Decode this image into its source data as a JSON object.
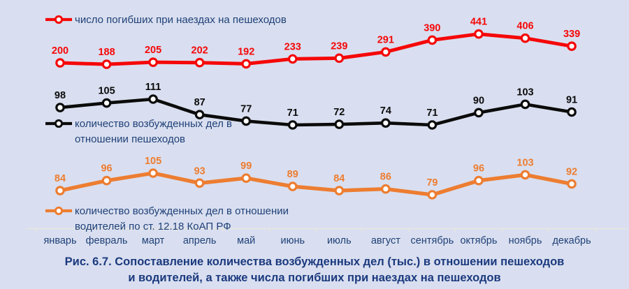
{
  "chart_data": {
    "type": "line",
    "categories": [
      "январь",
      "февраль",
      "март",
      "апрель",
      "май",
      "июнь",
      "июль",
      "август",
      "сентябрь",
      "октябрь",
      "ноябрь",
      "декабрь"
    ],
    "series": [
      {
        "name": "число погибших при наездах на пешеходов",
        "color": "#F50808",
        "values": [
          200,
          188,
          205,
          202,
          192,
          233,
          239,
          291,
          390,
          441,
          406,
          339
        ],
        "legend_lines": [
          "число погибших при наездах на пешеходов"
        ]
      },
      {
        "name": "количество возбужденных дел в отношении пешеходов",
        "color": "#0B0B0B",
        "values": [
          98,
          105,
          111,
          87,
          77,
          71,
          72,
          74,
          71,
          90,
          103,
          91
        ],
        "legend_lines": [
          "количество возбужденных дел в",
          "отношении пешеходов"
        ]
      },
      {
        "name": "количество возбужденных дел в отношении водителей по ст. 12.18 КоАП РФ",
        "color": "#ED7D31",
        "values": [
          84,
          96,
          105,
          93,
          99,
          89,
          84,
          86,
          79,
          96,
          103,
          92
        ],
        "legend_lines": [
          "количество возбужденных дел в отношении",
          "водителей по ст. 12.18 КоАП РФ"
        ]
      }
    ],
    "title": "Рис. 6.7. Сопоставление количества возбужденных дел (тыс.) в отношении пешеходов и водителей, а также числа погибших при наездах на пешеходов",
    "xlabel": "",
    "ylabel": "",
    "grid": false,
    "data_labels": true,
    "legend_position": "inline-left-of-each-series"
  },
  "caption": {
    "line1": "Рис. 6.7. Сопоставление количества возбужденных дел (тыс.) в отношении пешеходов",
    "line2": "и водителей, а также числа погибших при наездах на пешеходов"
  },
  "colors": {
    "background": "#D9DFF0",
    "legend_text": "#1F4077",
    "month_text": "#1F4077",
    "caption_text": "#1B397E",
    "axis_line": "#EBE7DA",
    "marker_fill": "#FFFFFF"
  }
}
